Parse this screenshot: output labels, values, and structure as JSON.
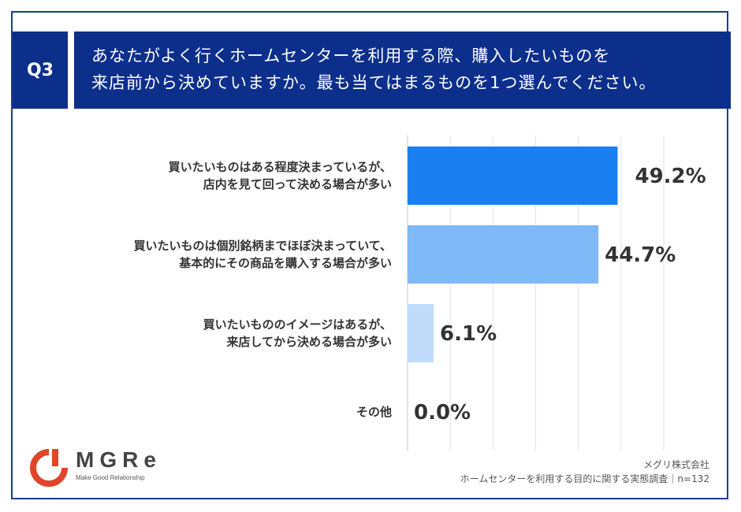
{
  "question": {
    "badge": "Q3",
    "line1": "あなたがよく行くホームセンターを利用する際、購入したいものを",
    "line2": "来店前から決めていますか。最も当てはまるものを1つ選んでください。"
  },
  "chart_data": {
    "type": "bar",
    "orientation": "horizontal",
    "categories": [
      [
        "買いたいものはある程度決まっているが、",
        "店内を見て回って決める場合が多い"
      ],
      [
        "買いたいものは個別銘柄までほぼ決まっていて、",
        "基本的にその商品を購入する場合が多い"
      ],
      [
        "買いたいもののイメージはあるが、",
        "来店してから決める場合が多い"
      ],
      [
        "その他"
      ]
    ],
    "values": [
      49.2,
      44.7,
      6.1,
      0.0
    ],
    "value_labels": [
      "49.2%",
      "44.7%",
      "6.1%",
      "0.0%"
    ],
    "xlim": [
      0,
      60
    ],
    "grid": true,
    "colors": [
      "#1a7ff0",
      "#7fb9f7",
      "#c1dcfb",
      "#dbe9fb"
    ]
  },
  "logo": {
    "name": "MGRe",
    "tagline": "Make Good Relationship",
    "color": "#e0452a"
  },
  "footer": {
    "company": "メグリ株式会社",
    "survey": "ホームセンターを利用する目的に関する実態調査｜n=132"
  }
}
